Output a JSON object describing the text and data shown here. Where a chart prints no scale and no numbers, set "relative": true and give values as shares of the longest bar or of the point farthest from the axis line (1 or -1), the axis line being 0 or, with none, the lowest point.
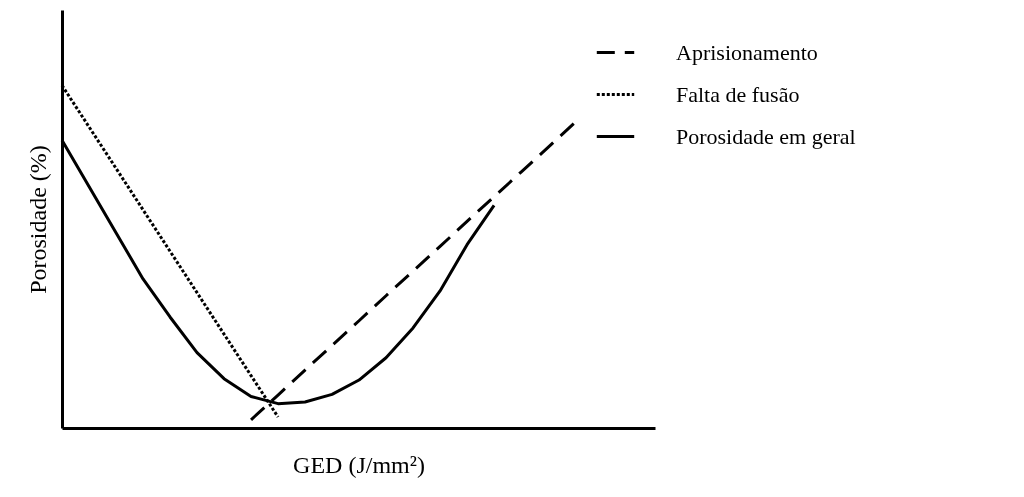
{
  "chart_data": {
    "type": "line",
    "relative": true,
    "xlabel": "GED (J/mm²)",
    "ylabel": "Porosidade (%)",
    "legend": "right",
    "grid": false,
    "marker": "none",
    "categories": [
      null,
      null,
      null,
      null,
      null,
      null,
      null,
      null,
      null,
      null,
      null,
      null,
      null,
      null,
      null,
      null,
      null,
      null,
      null,
      null
    ],
    "series": [
      {
        "name": "Aprisionamento",
        "color": "#000000",
        "line_style": "dashed",
        "values": [
          null,
          null,
          null,
          null,
          null,
          null,
          null,
          0.024,
          0.096,
          0.169,
          0.241,
          0.313,
          0.386,
          0.458,
          0.53,
          0.603,
          0.675,
          0.747,
          0.819,
          0.892
        ]
      },
      {
        "name": "Falta de fusão",
        "color": "#000000",
        "line_style": "dotted",
        "values": [
          1,
          0.879,
          0.758,
          0.637,
          0.516,
          0.395,
          0.274,
          0.153,
          0.032,
          null,
          null,
          null,
          null,
          null,
          null,
          null,
          null,
          null,
          null,
          null
        ]
      },
      {
        "name": "Porosidade em geral",
        "color": "#000000",
        "line_style": "solid",
        "values": [
          0.84,
          0.705,
          0.57,
          0.435,
          0.324,
          0.22,
          0.144,
          0.092,
          0.071,
          0.076,
          0.098,
          0.14,
          0.205,
          0.292,
          0.4,
          0.535,
          0.65,
          null,
          null,
          null
        ]
      }
    ]
  }
}
